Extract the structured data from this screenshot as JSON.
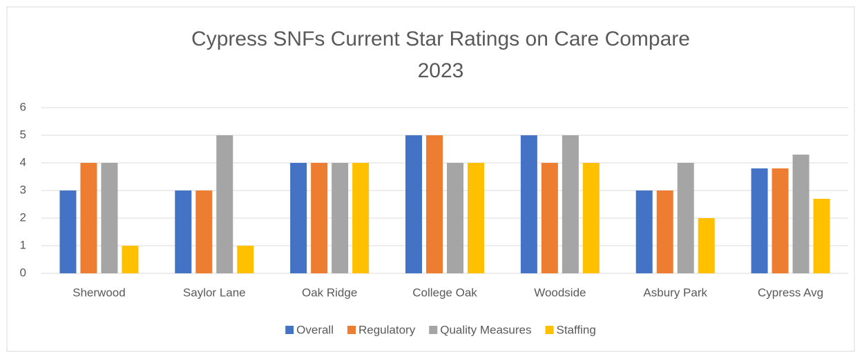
{
  "chart_data": {
    "type": "bar",
    "title": "Cypress SNFs Current Star Ratings on Care Compare",
    "subtitle": "2023",
    "categories": [
      "Sherwood",
      "Saylor Lane",
      "Oak Ridge",
      "College Oak",
      "Woodside",
      "Asbury Park",
      "Cypress Avg"
    ],
    "series": [
      {
        "name": "Overall",
        "color": "#4472c4",
        "values": [
          3,
          3,
          4,
          5,
          5,
          3,
          3.8
        ]
      },
      {
        "name": "Regulatory",
        "color": "#ed7d31",
        "values": [
          4,
          3,
          4,
          5,
          4,
          3,
          3.8
        ]
      },
      {
        "name": "Quality Measures",
        "color": "#a5a5a5",
        "values": [
          4,
          5,
          4,
          4,
          5,
          4,
          4.3
        ]
      },
      {
        "name": "Staffing",
        "color": "#ffc000",
        "values": [
          1,
          1,
          4,
          4,
          4,
          2,
          2.7
        ]
      }
    ],
    "ylim": [
      0,
      6
    ],
    "yticks": [
      0,
      1,
      2,
      3,
      4,
      5,
      6
    ],
    "grid": true,
    "legend": "bottom"
  }
}
